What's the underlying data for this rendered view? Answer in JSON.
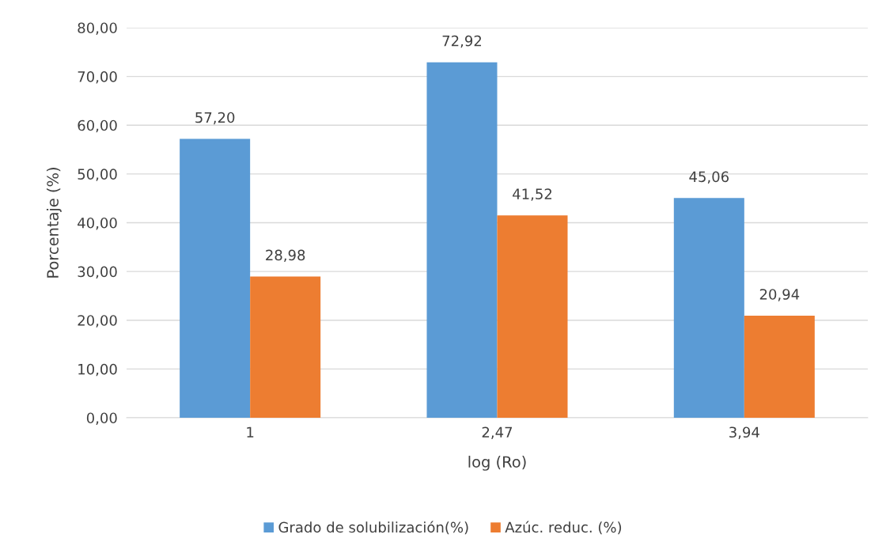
{
  "chart_data": {
    "type": "bar",
    "xlabel": "log (Ro)",
    "ylabel": "Porcentaje (%)",
    "categories": [
      "1",
      "2,47",
      "3,94"
    ],
    "series": [
      {
        "name": "Grado de solubilización(%)",
        "color": "#5b9bd5",
        "values": [
          57.2,
          72.92,
          45.06
        ],
        "value_labels": [
          "57,20",
          "72,92",
          "45,06"
        ]
      },
      {
        "name": "Azúc. reduc. (%)",
        "color": "#ed7d31",
        "values": [
          28.98,
          41.52,
          20.94
        ],
        "value_labels": [
          "28,98",
          "41,52",
          "20,94"
        ]
      }
    ],
    "ylim": [
      0,
      80
    ],
    "yticks": [
      {
        "value": 0,
        "label": "0,00"
      },
      {
        "value": 10,
        "label": "10,00"
      },
      {
        "value": 20,
        "label": "20,00"
      },
      {
        "value": 30,
        "label": "30,00"
      },
      {
        "value": 40,
        "label": "40,00"
      },
      {
        "value": 50,
        "label": "50,00"
      },
      {
        "value": 60,
        "label": "60,00"
      },
      {
        "value": 70,
        "label": "70,00"
      },
      {
        "value": 80,
        "label": "80,00"
      }
    ],
    "grid": "y",
    "legend": "bottom"
  }
}
